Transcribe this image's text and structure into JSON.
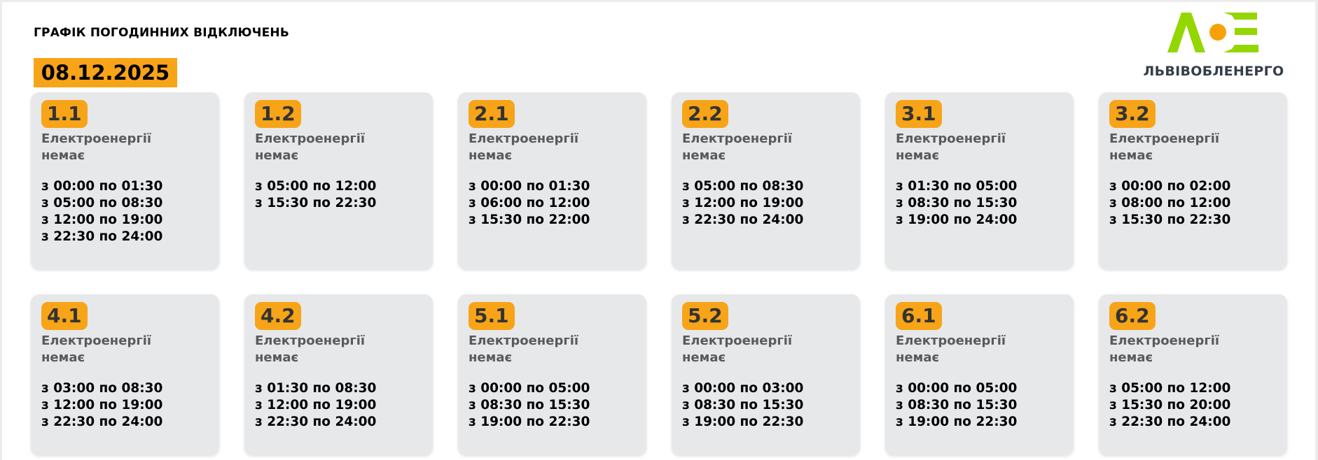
{
  "header": {
    "title": "ГРАФІК ПОГОДИННИХ ВІДКЛЮЧЕНЬ",
    "date": "08.12.2025"
  },
  "logo": {
    "brand": "ЛЬВІВОБЛЕНЕРГО",
    "colors": {
      "green": "#94d600",
      "orange": "#f7a10a"
    }
  },
  "colors": {
    "accent": "#f7a418",
    "card": "#e7e8ea"
  },
  "status_text": [
    "Електроенергії",
    "немає"
  ],
  "groups": [
    {
      "id": "1.1",
      "times": [
        "з 00:00 по 01:30",
        "з 05:00 по 08:30",
        "з 12:00 по 19:00",
        "з 22:30 по 24:00"
      ]
    },
    {
      "id": "1.2",
      "times": [
        "з 05:00 по 12:00",
        "з 15:30 по 22:30"
      ]
    },
    {
      "id": "2.1",
      "times": [
        "з 00:00 по 01:30",
        "з 06:00 по 12:00",
        "з 15:30 по 22:00"
      ]
    },
    {
      "id": "2.2",
      "times": [
        "з 05:00 по 08:30",
        "з 12:00 по 19:00",
        "з 22:30 по 24:00"
      ]
    },
    {
      "id": "3.1",
      "times": [
        "з 01:30 по 05:00",
        "з 08:30 по 15:30",
        "з 19:00 по 24:00"
      ]
    },
    {
      "id": "3.2",
      "times": [
        "з 00:00 по 02:00",
        "з 08:00 по 12:00",
        "з 15:30 по 22:30"
      ]
    },
    {
      "id": "4.1",
      "times": [
        "з 03:00 по 08:30",
        "з 12:00 по 19:00",
        "з 22:30 по 24:00"
      ]
    },
    {
      "id": "4.2",
      "times": [
        "з 01:30 по 08:30",
        "з 12:00 по 19:00",
        "з 22:30 по 24:00"
      ]
    },
    {
      "id": "5.1",
      "times": [
        "з 00:00 по 05:00",
        "з 08:30 по 15:30",
        "з 19:00 по 22:30"
      ]
    },
    {
      "id": "5.2",
      "times": [
        "з 00:00 по 03:00",
        "з 08:30 по 15:30",
        "з 19:00 по 22:30"
      ]
    },
    {
      "id": "6.1",
      "times": [
        "з 00:00 по 05:00",
        "з 08:30 по 15:30",
        "з 19:00 по 22:30"
      ]
    },
    {
      "id": "6.2",
      "times": [
        "з 05:00 по 12:00",
        "з 15:30 по 20:00",
        "з 22:30 по 24:00"
      ]
    }
  ]
}
